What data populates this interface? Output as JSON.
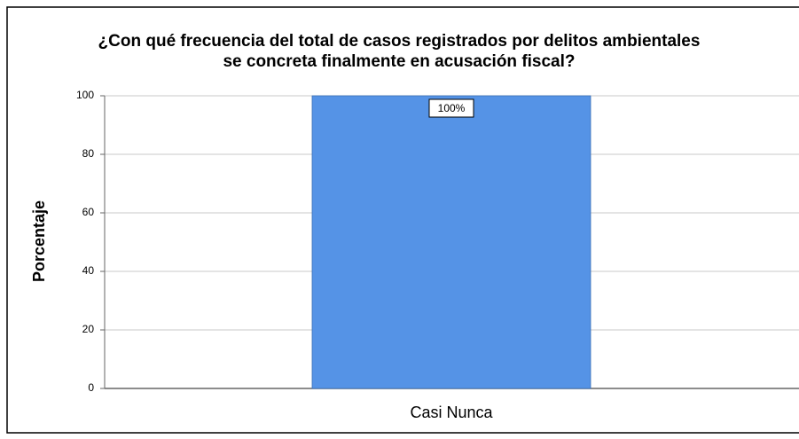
{
  "chart_data": {
    "type": "bar",
    "title": [
      "¿Con qué frecuencia del total de casos registrados por delitos ambientales",
      "se concreta finalmente en acusación fiscal?"
    ],
    "ylabel": "Porcentaje",
    "categories": [
      "Casi Nunca"
    ],
    "values": [
      100
    ],
    "value_labels": [
      "100%"
    ],
    "color": "#5593e6",
    "ylim": [
      0,
      100
    ],
    "yticks": [
      0,
      20,
      40,
      60,
      80,
      100
    ],
    "grid": true
  }
}
